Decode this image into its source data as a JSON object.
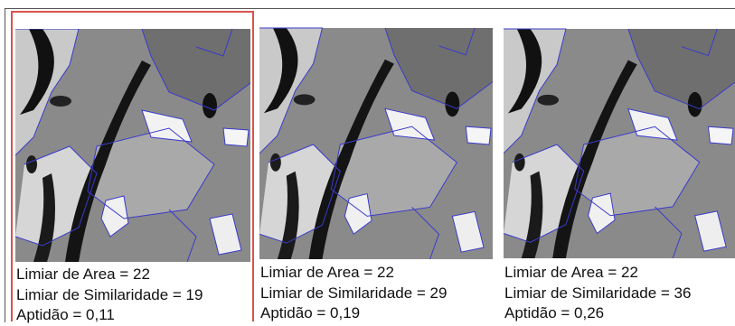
{
  "panels": [
    {
      "lines": [
        "Limiar de Area = 22",
        "Limiar de Similaridade = 19",
        "Aptidão = 0,11"
      ],
      "selected": true
    },
    {
      "lines": [
        "Limiar de Area = 22",
        "Limiar de Similaridade = 29",
        "Aptidão = 0,19"
      ],
      "selected": false
    },
    {
      "lines": [
        "Limiar de Area = 22",
        "Limiar de Similaridade = 36",
        "Aptidão = 0,26"
      ],
      "selected": false
    }
  ]
}
